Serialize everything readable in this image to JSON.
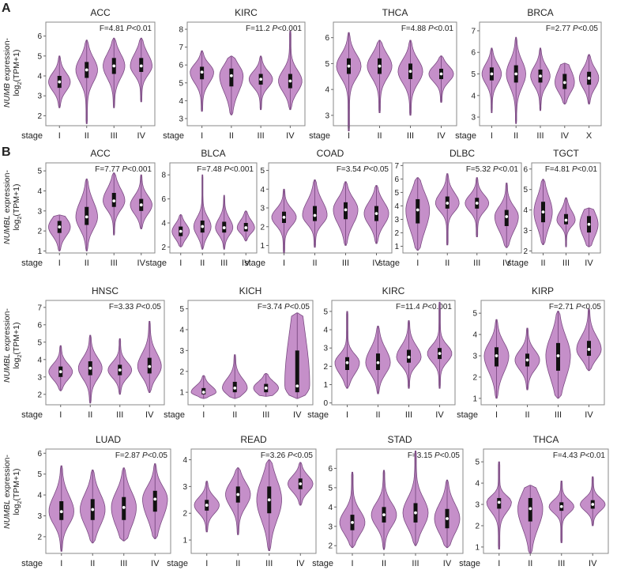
{
  "panel_labels": [
    "A",
    "B"
  ],
  "y_label_A": {
    "gene": "NUMB",
    "suffix": " expression-",
    "line2a": "log",
    "sub": "2",
    "line2b": "(TPM+1)"
  },
  "y_label_B": {
    "gene": "NUMBL",
    "suffix": " expression-",
    "line2a": "log",
    "sub": "2",
    "line2b": "(TPM+1)"
  },
  "stage_label": "stage",
  "colors": {
    "violin_fill": "#c58fc9",
    "violin_stroke": "#7a4a82",
    "box": "#111111",
    "median": "#ffffff"
  },
  "chart_data": [
    {
      "type": "violin",
      "title": "ACC",
      "stat": "F=4.81",
      "p": "P<0.01",
      "categories": [
        "I",
        "II",
        "III",
        "IV"
      ],
      "ylim": [
        1.5,
        6.7
      ],
      "yticks": [
        2,
        3,
        4,
        5,
        6
      ],
      "series": [
        {
          "min": 2.4,
          "q1": 3.4,
          "median": 3.7,
          "q3": 4.0,
          "max": 5.0
        },
        {
          "min": 1.6,
          "q1": 3.9,
          "median": 4.3,
          "q3": 4.7,
          "max": 5.8
        },
        {
          "min": 2.4,
          "q1": 4.1,
          "median": 4.5,
          "q3": 4.9,
          "max": 5.9
        },
        {
          "min": 2.7,
          "q1": 4.2,
          "median": 4.5,
          "q3": 4.9,
          "max": 5.9
        }
      ]
    },
    {
      "type": "violin",
      "title": "KIRC",
      "stat": "F=11.2",
      "p": "P<0.001",
      "categories": [
        "I",
        "II",
        "III",
        "IV"
      ],
      "ylim": [
        2.6,
        8.4
      ],
      "yticks": [
        3,
        4,
        5,
        6,
        7,
        8
      ],
      "series": [
        {
          "min": 3.4,
          "q1": 5.2,
          "median": 5.6,
          "q3": 5.9,
          "max": 6.8
        },
        {
          "min": 3.2,
          "q1": 4.8,
          "median": 5.4,
          "q3": 5.8,
          "max": 6.5
        },
        {
          "min": 3.5,
          "q1": 4.9,
          "median": 5.2,
          "q3": 5.5,
          "max": 6.5
        },
        {
          "min": 3.5,
          "q1": 4.7,
          "median": 5.1,
          "q3": 5.5,
          "max": 7.9
        }
      ]
    },
    {
      "type": "violin",
      "title": "THCA",
      "stat": "F=4.88",
      "p": "P<0.01",
      "categories": [
        "I",
        "II",
        "III",
        "IV"
      ],
      "ylim": [
        2.6,
        6.6
      ],
      "yticks": [
        3,
        4,
        5,
        6
      ],
      "series": [
        {
          "min": 2.4,
          "q1": 4.6,
          "median": 4.9,
          "q3": 5.2,
          "max": 6.2
        },
        {
          "min": 3.1,
          "q1": 4.6,
          "median": 4.9,
          "q3": 5.2,
          "max": 5.9
        },
        {
          "min": 3.0,
          "q1": 4.4,
          "median": 4.7,
          "q3": 5.0,
          "max": 5.9
        },
        {
          "min": 3.5,
          "q1": 4.4,
          "median": 4.6,
          "q3": 4.8,
          "max": 5.3
        }
      ]
    },
    {
      "type": "violin",
      "title": "BRCA",
      "stat": "F=2.77",
      "p": "P<0.05",
      "categories": [
        "I",
        "II",
        "III",
        "IV",
        "X"
      ],
      "ylim": [
        2.6,
        7.4
      ],
      "yticks": [
        3,
        4,
        5,
        6,
        7
      ],
      "series": [
        {
          "min": 3.2,
          "q1": 4.7,
          "median": 5.0,
          "q3": 5.3,
          "max": 6.2
        },
        {
          "min": 2.7,
          "q1": 4.6,
          "median": 5.0,
          "q3": 5.4,
          "max": 6.7
        },
        {
          "min": 3.3,
          "q1": 4.6,
          "median": 4.9,
          "q3": 5.2,
          "max": 6.2
        },
        {
          "min": 3.6,
          "q1": 4.3,
          "median": 4.6,
          "q3": 5.0,
          "max": 5.5
        },
        {
          "min": 3.6,
          "q1": 4.5,
          "median": 4.8,
          "q3": 5.1,
          "max": 5.9
        }
      ]
    },
    {
      "type": "violin",
      "title": "ACC",
      "stat": "F=7.77",
      "p": "P<0.001",
      "categories": [
        "I",
        "II",
        "III",
        "IV"
      ],
      "ylim": [
        0.9,
        5.4
      ],
      "yticks": [
        1,
        2,
        3,
        4,
        5
      ],
      "series": [
        {
          "min": 1.0,
          "q1": 1.9,
          "median": 2.2,
          "q3": 2.5,
          "max": 2.8
        },
        {
          "min": 1.0,
          "q1": 2.3,
          "median": 2.7,
          "q3": 3.2,
          "max": 4.6
        },
        {
          "min": 1.8,
          "q1": 3.2,
          "median": 3.5,
          "q3": 3.9,
          "max": 4.9
        },
        {
          "min": 2.1,
          "q1": 3.0,
          "median": 3.3,
          "q3": 3.6,
          "max": 4.8
        }
      ]
    },
    {
      "type": "violin",
      "title": "BLCA",
      "stat": "F=7.48",
      "p": "P<0.001",
      "categories": [
        "I",
        "II",
        "III",
        "IV"
      ],
      "ylim": [
        1.5,
        9.0
      ],
      "yticks": [
        2,
        4,
        6,
        8
      ],
      "series": [
        {
          "min": 2.0,
          "q1": 2.9,
          "median": 3.3,
          "q3": 3.7,
          "max": 4.7
        },
        {
          "min": 1.8,
          "q1": 3.2,
          "median": 3.7,
          "q3": 4.2,
          "max": 8.0
        },
        {
          "min": 1.8,
          "q1": 3.2,
          "median": 3.6,
          "q3": 4.1,
          "max": 6.3
        },
        {
          "min": 2.5,
          "q1": 3.3,
          "median": 3.6,
          "q3": 4.0,
          "max": 5.0
        }
      ]
    },
    {
      "type": "violin",
      "title": "COAD",
      "stat": "F=3.54",
      "p": "P<0.05",
      "categories": [
        "I",
        "II",
        "III",
        "IV"
      ],
      "ylim": [
        0.6,
        5.4
      ],
      "yticks": [
        1,
        2,
        3,
        4,
        5
      ],
      "series": [
        {
          "min": 0.6,
          "q1": 2.2,
          "median": 2.5,
          "q3": 2.8,
          "max": 4.0
        },
        {
          "min": 0.9,
          "q1": 2.3,
          "median": 2.6,
          "q3": 3.1,
          "max": 4.5
        },
        {
          "min": 1.0,
          "q1": 2.4,
          "median": 2.9,
          "q3": 3.3,
          "max": 4.4
        },
        {
          "min": 1.1,
          "q1": 2.3,
          "median": 2.7,
          "q3": 3.1,
          "max": 4.2
        }
      ]
    },
    {
      "type": "violin",
      "title": "DLBC",
      "stat": "F=5.32",
      "p": "P<0.01",
      "categories": [
        "I",
        "II",
        "III",
        "IV"
      ],
      "ylim": [
        0.5,
        7.2
      ],
      "yticks": [
        1,
        2,
        3,
        4,
        5,
        6,
        7
      ],
      "series": [
        {
          "min": 0.7,
          "q1": 2.7,
          "median": 3.7,
          "q3": 4.5,
          "max": 6.1
        },
        {
          "min": 1.1,
          "q1": 3.8,
          "median": 4.2,
          "q3": 4.7,
          "max": 6.4
        },
        {
          "min": 1.7,
          "q1": 3.8,
          "median": 4.2,
          "q3": 4.6,
          "max": 6.1
        },
        {
          "min": 0.9,
          "q1": 2.5,
          "median": 3.2,
          "q3": 3.7,
          "max": 5.7
        }
      ]
    },
    {
      "type": "violin",
      "title": "TGCT",
      "stat": "F=4.81",
      "p": "P<0.01",
      "categories": [
        "II",
        "III",
        "IV"
      ],
      "ylim": [
        1.9,
        6.3
      ],
      "yticks": [
        2,
        3,
        4,
        5,
        6
      ],
      "series": [
        {
          "min": 2.3,
          "q1": 3.4,
          "median": 3.9,
          "q3": 4.4,
          "max": 5.5
        },
        {
          "min": 2.2,
          "q1": 3.3,
          "median": 3.5,
          "q3": 3.8,
          "max": 4.6
        },
        {
          "min": 2.2,
          "q1": 2.9,
          "median": 3.3,
          "q3": 3.7,
          "max": 4.1
        }
      ]
    },
    {
      "type": "violin",
      "title": "HNSC",
      "stat": "F=3.33",
      "p": "P<0.05",
      "categories": [
        "I",
        "II",
        "III",
        "IV"
      ],
      "ylim": [
        1.4,
        7.4
      ],
      "yticks": [
        2,
        3,
        4,
        5,
        6,
        7
      ],
      "series": [
        {
          "min": 2.2,
          "q1": 3.0,
          "median": 3.3,
          "q3": 3.6,
          "max": 4.8
        },
        {
          "min": 1.5,
          "q1": 3.1,
          "median": 3.5,
          "q3": 3.9,
          "max": 5.4
        },
        {
          "min": 2.0,
          "q1": 3.1,
          "median": 3.4,
          "q3": 3.7,
          "max": 5.2
        },
        {
          "min": 2.1,
          "q1": 3.2,
          "median": 3.6,
          "q3": 4.1,
          "max": 6.2
        }
      ]
    },
    {
      "type": "violin",
      "title": "KICH",
      "stat": "F=3.74",
      "p": "P<0.05",
      "categories": [
        "I",
        "II",
        "III",
        "IV"
      ],
      "ylim": [
        0.4,
        5.4
      ],
      "yticks": [
        1,
        2,
        3,
        4,
        5
      ],
      "series": [
        {
          "min": 0.7,
          "q1": 0.9,
          "median": 1.0,
          "q3": 1.2,
          "max": 1.8
        },
        {
          "min": 0.7,
          "q1": 1.0,
          "median": 1.2,
          "q3": 1.5,
          "max": 2.8
        },
        {
          "min": 0.8,
          "q1": 1.0,
          "median": 1.2,
          "q3": 1.4,
          "max": 1.9
        },
        {
          "min": 0.7,
          "q1": 1.0,
          "median": 1.3,
          "q3": 3.0,
          "max": 4.8
        }
      ]
    },
    {
      "type": "violin",
      "title": "KIRC",
      "stat": "F=11.4",
      "p": "P<0.001",
      "categories": [
        "I",
        "II",
        "III",
        "IV"
      ],
      "ylim": [
        -0.1,
        5.6
      ],
      "yticks": [
        0,
        1,
        2,
        3,
        4,
        5
      ],
      "series": [
        {
          "min": 0.8,
          "q1": 1.8,
          "median": 2.2,
          "q3": 2.5,
          "max": 5.0
        },
        {
          "min": 0.5,
          "q1": 1.8,
          "median": 2.2,
          "q3": 2.7,
          "max": 4.2
        },
        {
          "min": 0.8,
          "q1": 2.2,
          "median": 2.5,
          "q3": 2.9,
          "max": 4.5
        },
        {
          "min": 0.8,
          "q1": 2.4,
          "median": 2.7,
          "q3": 3.0,
          "max": 5.5
        }
      ]
    },
    {
      "type": "violin",
      "title": "KIRP",
      "stat": "F=2.71",
      "p": "P<0.05",
      "categories": [
        "I",
        "II",
        "III",
        "IV"
      ],
      "ylim": [
        0.7,
        5.6
      ],
      "yticks": [
        1,
        2,
        3,
        4,
        5
      ],
      "series": [
        {
          "min": 1.0,
          "q1": 2.5,
          "median": 3.0,
          "q3": 3.4,
          "max": 4.7
        },
        {
          "min": 1.4,
          "q1": 2.5,
          "median": 2.8,
          "q3": 3.1,
          "max": 4.3
        },
        {
          "min": 1.0,
          "q1": 2.3,
          "median": 3.0,
          "q3": 3.6,
          "max": 5.1
        },
        {
          "min": 2.3,
          "q1": 3.0,
          "median": 3.3,
          "q3": 3.7,
          "max": 5.2
        }
      ]
    },
    {
      "type": "violin",
      "title": "LUAD",
      "stat": "F=2.87",
      "p": "P<0.05",
      "categories": [
        "I",
        "II",
        "III",
        "IV"
      ],
      "ylim": [
        1.2,
        6.2
      ],
      "yticks": [
        2,
        3,
        4,
        5,
        6
      ],
      "series": [
        {
          "min": 1.3,
          "q1": 2.8,
          "median": 3.2,
          "q3": 3.7,
          "max": 5.4
        },
        {
          "min": 1.7,
          "q1": 2.8,
          "median": 3.3,
          "q3": 3.8,
          "max": 5.2
        },
        {
          "min": 1.8,
          "q1": 2.8,
          "median": 3.4,
          "q3": 3.9,
          "max": 5.3
        },
        {
          "min": 1.9,
          "q1": 3.2,
          "median": 3.8,
          "q3": 4.2,
          "max": 5.5
        }
      ]
    },
    {
      "type": "violin",
      "title": "READ",
      "stat": "F=3.26",
      "p": "P<0.05",
      "categories": [
        "I",
        "II",
        "III",
        "IV"
      ],
      "ylim": [
        0.5,
        4.4
      ],
      "yticks": [
        1,
        2,
        3,
        4
      ],
      "series": [
        {
          "min": 1.3,
          "q1": 2.1,
          "median": 2.3,
          "q3": 2.5,
          "max": 3.2
        },
        {
          "min": 1.2,
          "q1": 2.4,
          "median": 2.7,
          "q3": 3.0,
          "max": 3.7
        },
        {
          "min": 0.6,
          "q1": 2.0,
          "median": 2.5,
          "q3": 3.0,
          "max": 4.0
        },
        {
          "min": 2.3,
          "q1": 2.9,
          "median": 3.1,
          "q3": 3.3,
          "max": 3.9
        }
      ]
    },
    {
      "type": "violin",
      "title": "STAD",
      "stat": "F=3.15",
      "p": "P<0.05",
      "categories": [
        "I",
        "II",
        "III",
        "IV"
      ],
      "ylim": [
        1.6,
        7.0
      ],
      "yticks": [
        2,
        3,
        4,
        5,
        6
      ],
      "series": [
        {
          "min": 1.9,
          "q1": 2.8,
          "median": 3.2,
          "q3": 3.6,
          "max": 5.8
        },
        {
          "min": 1.8,
          "q1": 3.2,
          "median": 3.6,
          "q3": 4.0,
          "max": 5.9
        },
        {
          "min": 2.0,
          "q1": 3.2,
          "median": 3.7,
          "q3": 4.2,
          "max": 6.9
        },
        {
          "min": 1.9,
          "q1": 2.9,
          "median": 3.4,
          "q3": 3.9,
          "max": 5.4
        }
      ]
    },
    {
      "type": "violin",
      "title": "THCA",
      "stat": "F=4.43",
      "p": "P<0.01",
      "categories": [
        "I",
        "II",
        "III",
        "IV"
      ],
      "ylim": [
        0.7,
        5.6
      ],
      "yticks": [
        1,
        2,
        3,
        4,
        5
      ],
      "series": [
        {
          "min": 0.9,
          "q1": 2.8,
          "median": 3.1,
          "q3": 3.3,
          "max": 5.0
        },
        {
          "min": 0.7,
          "q1": 2.2,
          "median": 2.8,
          "q3": 3.3,
          "max": 3.9
        },
        {
          "min": 1.2,
          "q1": 2.7,
          "median": 2.9,
          "q3": 3.1,
          "max": 4.1
        },
        {
          "min": 2.0,
          "q1": 2.8,
          "median": 3.0,
          "q3": 3.2,
          "max": 4.3
        }
      ]
    }
  ]
}
